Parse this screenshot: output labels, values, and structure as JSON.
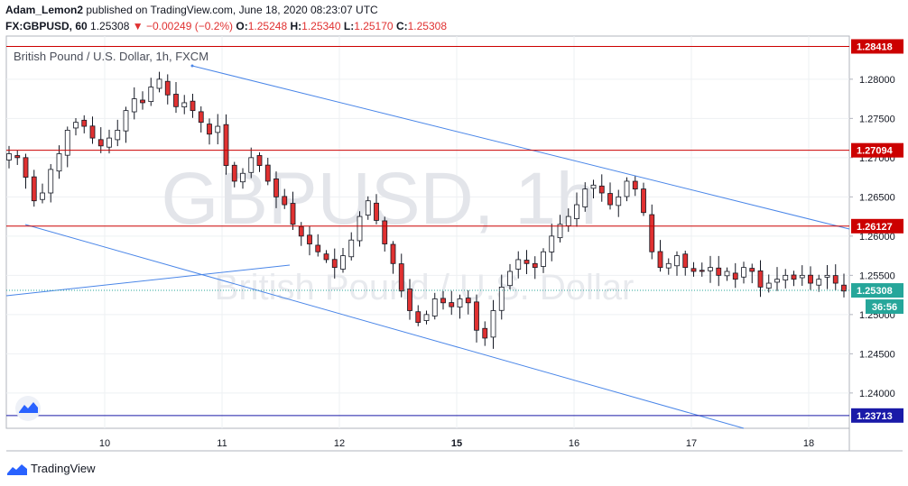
{
  "header": {
    "author": "Adam_Lemon2",
    "published": "published on TradingView.com, June 18, 2020 08:23:07 UTC",
    "symbol": "FX:GBPUSD, 60",
    "last": "1.25308",
    "change": "▼ −0.00249 (−0.2%)",
    "o_label": "O:",
    "o": "1.25248",
    "h_label": "H:",
    "h": "1.25340",
    "l_label": "L:",
    "l": "1.25170",
    "c_label": "C:",
    "c": "1.25308"
  },
  "footer": {
    "brand": "TradingView",
    "logo_icon": "tradingview-logo-icon"
  },
  "countdown": "36:56",
  "colors": {
    "up": "#ffffff",
    "down": "#e03131",
    "wick": "#131722",
    "hline": "#cc0000",
    "trend": "#4a86e8",
    "blue_line": "#1a1aa8",
    "price_badge": "#26a69a"
  },
  "chart_data": {
    "type": "candlestick",
    "title": "British Pound / U.S. Dollar, 1h, FXCM",
    "watermark": "GBPUSD, 1h",
    "watermark2": "British Pound / U.S. Dollar",
    "x_ticks": [
      "10",
      "11",
      "12",
      "15",
      "16",
      "17",
      "18"
    ],
    "y_ticks": [
      "1.28000",
      "1.27500",
      "1.27000",
      "1.26500",
      "1.26000",
      "1.25500",
      "1.25000",
      "1.24500",
      "1.24000"
    ],
    "ylim": [
      1.2355,
      1.2855
    ],
    "h_lines": [
      {
        "value": 1.28418,
        "label": "1.28418",
        "color": "#cc0000"
      },
      {
        "value": 1.27094,
        "label": "1.27094",
        "color": "#cc0000"
      },
      {
        "value": 1.26127,
        "label": "1.26127",
        "color": "#cc0000"
      },
      {
        "value": 1.23713,
        "label": "1.23713",
        "color": "#1a1aa8"
      }
    ],
    "current_price": {
      "value": 1.25308,
      "label": "1.25308"
    },
    "trendlines": [
      {
        "from": [
          0.0,
          1.2611
        ],
        "to": [
          0.0,
          1.2611
        ]
      }
    ],
    "close_path": [
      1.2705,
      1.27,
      1.2675,
      1.2645,
      1.2655,
      1.2685,
      1.2705,
      1.2735,
      1.2745,
      1.274,
      1.2725,
      1.2715,
      1.2725,
      1.2735,
      1.276,
      1.2775,
      1.277,
      1.279,
      1.28,
      1.278,
      1.2765,
      1.277,
      1.276,
      1.2745,
      1.273,
      1.274,
      1.269,
      1.267,
      1.268,
      1.27,
      1.269,
      1.267,
      1.265,
      1.264,
      1.2615,
      1.26,
      1.259,
      1.258,
      1.257,
      1.256,
      1.2575,
      1.2595,
      1.2625,
      1.2645,
      1.262,
      1.259,
      1.2565,
      1.253,
      1.2505,
      1.249,
      1.25,
      1.252,
      1.2515,
      1.251,
      1.252,
      1.2515,
      1.248,
      1.247,
      1.2505,
      1.2535,
      1.2555,
      1.257,
      1.2565,
      1.256,
      1.258,
      1.26,
      1.2615,
      1.2625,
      1.264,
      1.266,
      1.2665,
      1.2655,
      1.264,
      1.265,
      1.267,
      1.266,
      1.263,
      1.258,
      1.256,
      1.2565,
      1.2575,
      1.256,
      1.2555,
      1.2555,
      1.256,
      1.255,
      1.2555,
      1.2545,
      1.256,
      1.2555,
      1.2535,
      1.254,
      1.2545,
      1.255,
      1.2545,
      1.255,
      1.254,
      1.2545,
      1.255,
      1.254,
      1.253
    ]
  }
}
